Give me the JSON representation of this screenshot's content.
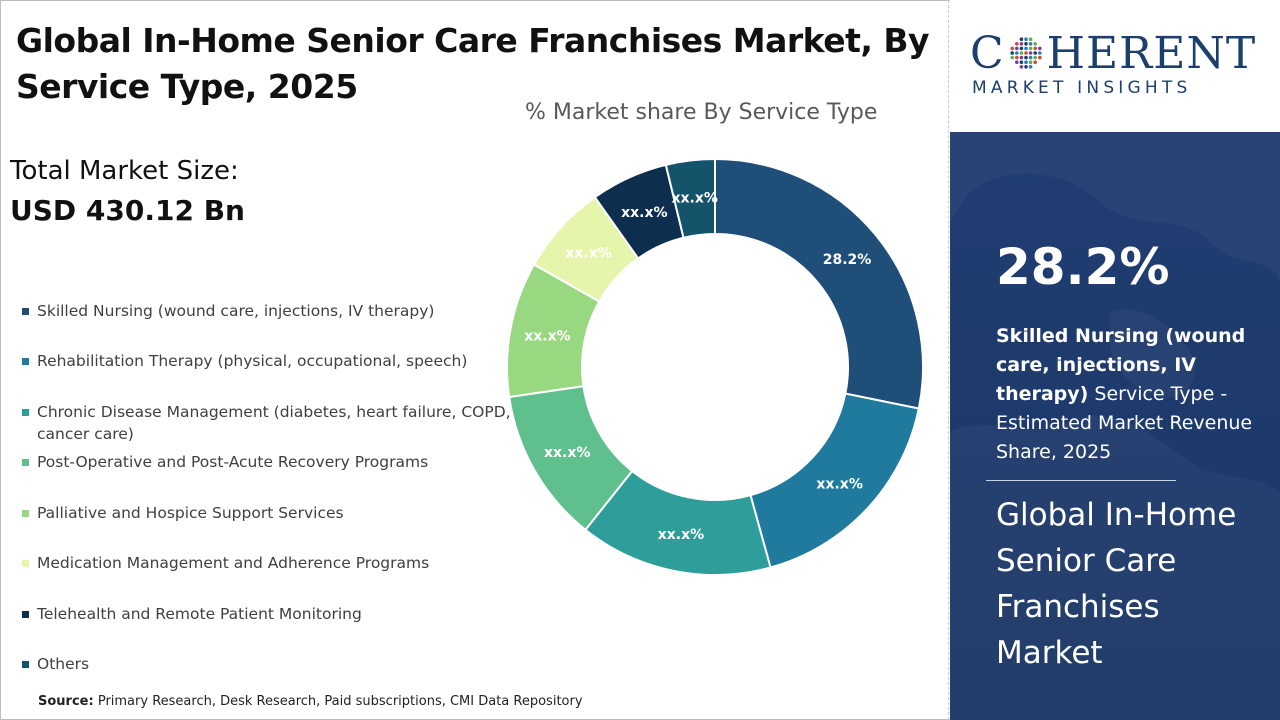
{
  "title": "Global In-Home Senior Care Franchises Market, By Service Type, 2025",
  "market_size": {
    "label": "Total Market Size:",
    "value": "USD 430.12 Bn"
  },
  "source": {
    "label": "Source:",
    "text": "Primary Research, Desk Research, Paid subscriptions, CMI Data Repository"
  },
  "logo": {
    "word_left": "C",
    "word_right": "HERENT",
    "subtitle": "MARKET INSIGHTS"
  },
  "side_panel": {
    "percent": "28.2%",
    "desc_bold": "Skilled Nursing (wound care, injections, IV therapy)",
    "desc_rest": " Service Type - Estimated Market Revenue Share, 2025",
    "market_name": "Global In-Home Senior Care Franchises Market"
  },
  "colors": {
    "brand_navy": "#1f3b6e",
    "logo_text": "#1c3f6e"
  },
  "chart_data": {
    "type": "pie",
    "donut": true,
    "title": "% Market share By Service Type",
    "legend_position": "left",
    "categories": [
      "Skilled Nursing (wound care, injections, IV therapy)",
      "Rehabilitation Therapy (physical, occupational, speech)",
      "Chronic Disease Management (diabetes, heart failure, COPD, cancer care)",
      "Post-Operative and Post-Acute Recovery Programs",
      "Palliative and Hospice Support Services",
      "Medication Management and Adherence Programs",
      "Telehealth and Remote Patient Monitoring",
      "Others"
    ],
    "values": [
      28.2,
      17.5,
      15.0,
      12.0,
      10.5,
      7.0,
      6.0,
      3.8
    ],
    "data_labels": [
      "28.2%",
      "xx.x%",
      "xx.x%",
      "xx.x%",
      "xx.x%",
      "xx.x%",
      "xx.x%",
      "xx.x%"
    ],
    "colors": [
      "#1f4e79",
      "#1f7a9e",
      "#2e9e9b",
      "#5fc08e",
      "#97d880",
      "#e5f5ab",
      "#0e2e4f",
      "#15536a"
    ]
  }
}
